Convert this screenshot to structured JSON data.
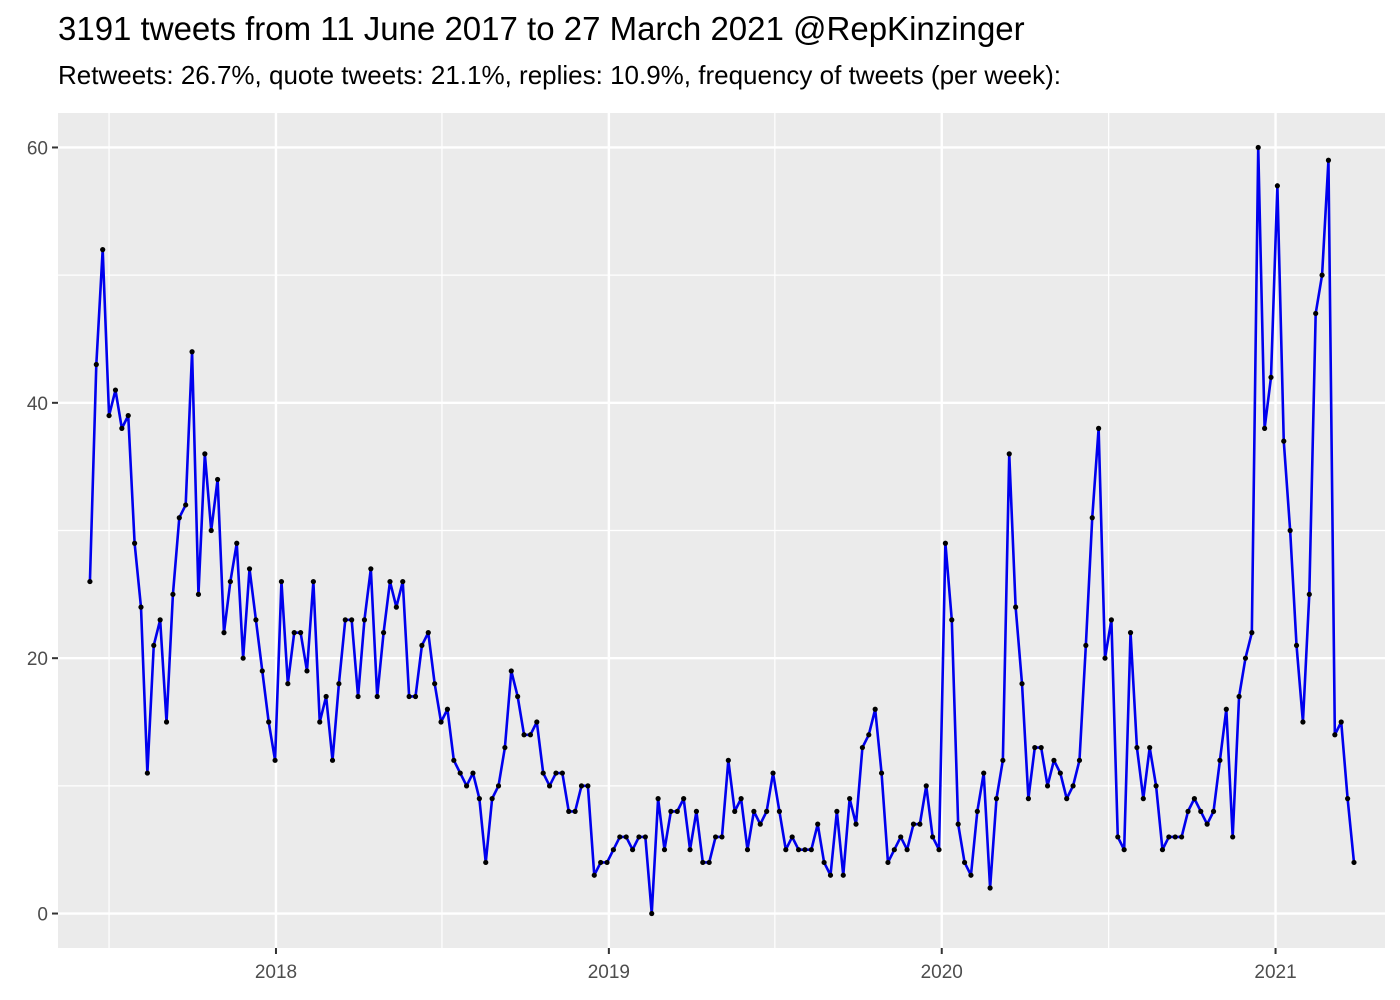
{
  "chart_data": {
    "type": "line",
    "title": "3191 tweets from 11 June 2017 to 27 March 2021 @RepKinzinger",
    "subtitle": "Retweets: 26.7%, quote tweets: 21.1%, replies: 10.9%, frequency of tweets (per week):",
    "xlabel": "",
    "ylabel": "",
    "start_date": "2017-06-11",
    "interval_days": 7,
    "x_ticks": [
      "2018",
      "2019",
      "2020",
      "2021"
    ],
    "y_ticks": [
      "0",
      "20",
      "40",
      "60"
    ],
    "ylim": [
      -2.7,
      62.7
    ],
    "xlim": [
      "2017-05-07",
      "2021-05-01"
    ],
    "grid": true,
    "line_color": "#0000ee",
    "point_color": "#000000",
    "background_color": "#ebebeb",
    "values": [
      26,
      43,
      52,
      39,
      41,
      38,
      39,
      29,
      24,
      11,
      21,
      23,
      15,
      25,
      31,
      32,
      44,
      25,
      36,
      30,
      34,
      22,
      26,
      29,
      20,
      27,
      23,
      19,
      15,
      12,
      26,
      18,
      22,
      22,
      19,
      26,
      15,
      17,
      12,
      18,
      23,
      23,
      17,
      23,
      27,
      17,
      22,
      26,
      24,
      26,
      17,
      17,
      21,
      22,
      18,
      15,
      16,
      12,
      11,
      10,
      11,
      9,
      4,
      9,
      10,
      13,
      19,
      17,
      14,
      14,
      15,
      11,
      10,
      11,
      11,
      8,
      8,
      10,
      10,
      3,
      4,
      4,
      5,
      6,
      6,
      5,
      6,
      6,
      0,
      9,
      5,
      8,
      8,
      9,
      5,
      8,
      4,
      4,
      6,
      6,
      12,
      8,
      9,
      5,
      8,
      7,
      8,
      11,
      8,
      5,
      6,
      5,
      5,
      5,
      7,
      4,
      3,
      8,
      3,
      9,
      7,
      13,
      14,
      16,
      11,
      4,
      5,
      6,
      5,
      7,
      7,
      10,
      6,
      5,
      29,
      23,
      7,
      4,
      3,
      8,
      11,
      2,
      9,
      12,
      36,
      24,
      18,
      9,
      13,
      13,
      10,
      12,
      11,
      9,
      10,
      12,
      21,
      31,
      38,
      20,
      23,
      6,
      5,
      22,
      13,
      9,
      13,
      10,
      5,
      6,
      6,
      6,
      8,
      9,
      8,
      7,
      8,
      12,
      16,
      6,
      17,
      20,
      22,
      60,
      38,
      42,
      57,
      37,
      30,
      21,
      15,
      25,
      47,
      50,
      59,
      14,
      15,
      9,
      4
    ]
  }
}
